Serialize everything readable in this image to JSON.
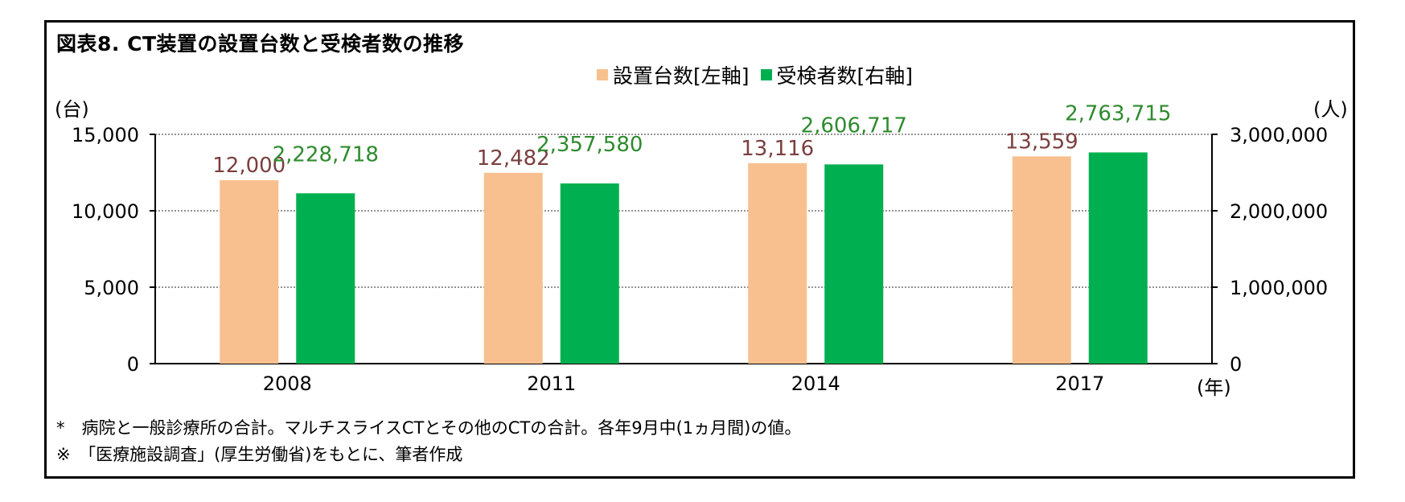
{
  "title": "図表8. CT装置の設置台数と受検者数の推移",
  "left_unit": "(台)",
  "right_unit": "(人)",
  "x_unit": "(年)",
  "notes": [
    "*　病院と一般診療所の合計。マルチスライスCTとその他のCTの合計。各年9月中(1ヵ月間)の値。",
    "※　「医療施設調査」(厚生労働省)をもとに、筆者作成"
  ],
  "colors": {
    "installed": "#F8C08F",
    "examinees": "#00B050",
    "installed_label": "#7B3F3F",
    "examinees_label": "#2E8B2E"
  },
  "chart_data": {
    "type": "bar",
    "categories": [
      "2008",
      "2011",
      "2014",
      "2017"
    ],
    "series": [
      {
        "name": "設置台数[左軸]",
        "axis": "left",
        "values": [
          12000,
          12482,
          13116,
          13559
        ],
        "labels": [
          "12,000",
          "12,482",
          "13,116",
          "13,559"
        ]
      },
      {
        "name": "受検者数[右軸]",
        "axis": "right",
        "values": [
          2228718,
          2357580,
          2606717,
          2763715
        ],
        "labels": [
          "2,228,718",
          "2,357,580",
          "2,606,717",
          "2,763,715"
        ]
      }
    ],
    "left_axis": {
      "ylim": [
        0,
        15000
      ],
      "ticks": [
        0,
        5000,
        10000,
        15000
      ],
      "tick_labels": [
        "0",
        "5,000",
        "10,000",
        "15,000"
      ]
    },
    "right_axis": {
      "ylim": [
        0,
        3000000
      ],
      "ticks": [
        0,
        1000000,
        2000000,
        3000000
      ],
      "tick_labels": [
        "0",
        "1,000,000",
        "2,000,000",
        "3,000,000"
      ]
    },
    "grid": true,
    "legend_position": "top"
  }
}
